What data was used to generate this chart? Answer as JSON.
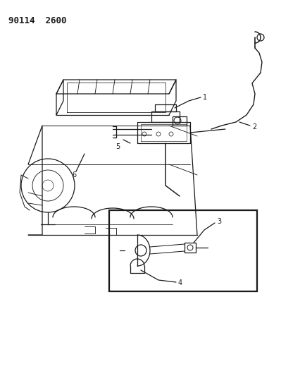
{
  "header": "90114  2600",
  "bg_color": "#ffffff",
  "line_color": "#1a1a1a",
  "fig_width": 3.99,
  "fig_height": 5.33,
  "dpi": 100,
  "header_fontsize": 9,
  "label_fontsize": 7,
  "lw": 0.9
}
